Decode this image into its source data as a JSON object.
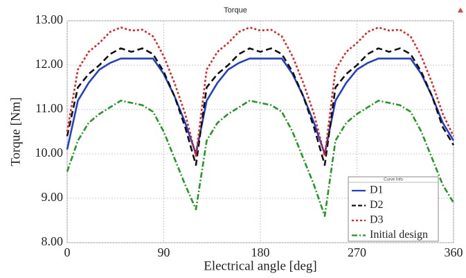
{
  "chart_data": {
    "type": "line",
    "title": "Torque",
    "x_label": "Electrical angle [deg]",
    "y_label": "Torque [Nm]",
    "legend_title": "Curve Info",
    "legend_position": "lower right",
    "grid": true,
    "xlim": [
      0,
      360
    ],
    "xticks": [
      0,
      90,
      180,
      270,
      360
    ],
    "ylim": [
      8,
      13
    ],
    "yticks": [
      {
        "value": 8,
        "label": "8.00"
      },
      {
        "value": 9,
        "label": "9.00"
      },
      {
        "value": 10,
        "label": "10.00"
      },
      {
        "value": 11,
        "label": "11.00"
      },
      {
        "value": 12,
        "label": "12.00"
      },
      {
        "value": 13,
        "label": "13.00"
      }
    ],
    "x": [
      0,
      10,
      20,
      30,
      40,
      50,
      60,
      70,
      80,
      90,
      100,
      110,
      120,
      130,
      140,
      150,
      160,
      170,
      180,
      190,
      200,
      210,
      220,
      230,
      240,
      250,
      260,
      270,
      280,
      290,
      300,
      310,
      320,
      330,
      340,
      350,
      360
    ],
    "series": [
      {
        "name": "D1",
        "color": "#1f3fcf",
        "style": "solid",
        "values": [
          10.1,
          11.2,
          11.6,
          11.9,
          12.05,
          12.15,
          12.15,
          12.15,
          12.15,
          11.8,
          11.3,
          10.7,
          10.0,
          11.2,
          11.6,
          11.9,
          12.05,
          12.15,
          12.15,
          12.15,
          12.15,
          11.8,
          11.3,
          10.7,
          10.0,
          11.2,
          11.6,
          11.9,
          12.05,
          12.15,
          12.15,
          12.15,
          12.15,
          11.8,
          11.3,
          10.7,
          10.3
        ]
      },
      {
        "name": "D2",
        "color": "#111111",
        "style": "dashed",
        "values": [
          10.4,
          11.5,
          11.8,
          12.0,
          12.25,
          12.38,
          12.3,
          12.38,
          12.25,
          11.85,
          11.3,
          10.6,
          9.75,
          11.5,
          11.8,
          12.0,
          12.25,
          12.38,
          12.3,
          12.38,
          12.25,
          11.85,
          11.3,
          10.6,
          9.75,
          11.5,
          11.8,
          12.0,
          12.25,
          12.38,
          12.3,
          12.38,
          12.25,
          11.85,
          11.3,
          10.6,
          10.2
        ]
      },
      {
        "name": "D3",
        "color": "#e8211f",
        "style": "dotted",
        "values": [
          10.5,
          11.9,
          12.3,
          12.5,
          12.75,
          12.85,
          12.78,
          12.8,
          12.65,
          12.2,
          11.6,
          10.9,
          9.95,
          11.9,
          12.3,
          12.5,
          12.75,
          12.85,
          12.78,
          12.8,
          12.65,
          12.2,
          11.6,
          10.9,
          9.95,
          11.9,
          12.3,
          12.5,
          12.75,
          12.85,
          12.78,
          12.8,
          12.65,
          12.2,
          11.6,
          10.9,
          10.4
        ]
      },
      {
        "name": "Initial design",
        "color": "#1f9a1f",
        "style": "dashdot",
        "values": [
          9.6,
          10.3,
          10.7,
          10.9,
          11.05,
          11.2,
          11.15,
          11.1,
          10.95,
          10.5,
          9.9,
          9.3,
          8.75,
          10.3,
          10.7,
          10.9,
          11.05,
          11.2,
          11.15,
          11.1,
          10.95,
          10.5,
          9.9,
          9.3,
          8.6,
          10.3,
          10.7,
          10.9,
          11.05,
          11.2,
          11.15,
          11.1,
          10.95,
          10.5,
          9.9,
          9.3,
          8.9
        ]
      }
    ]
  }
}
